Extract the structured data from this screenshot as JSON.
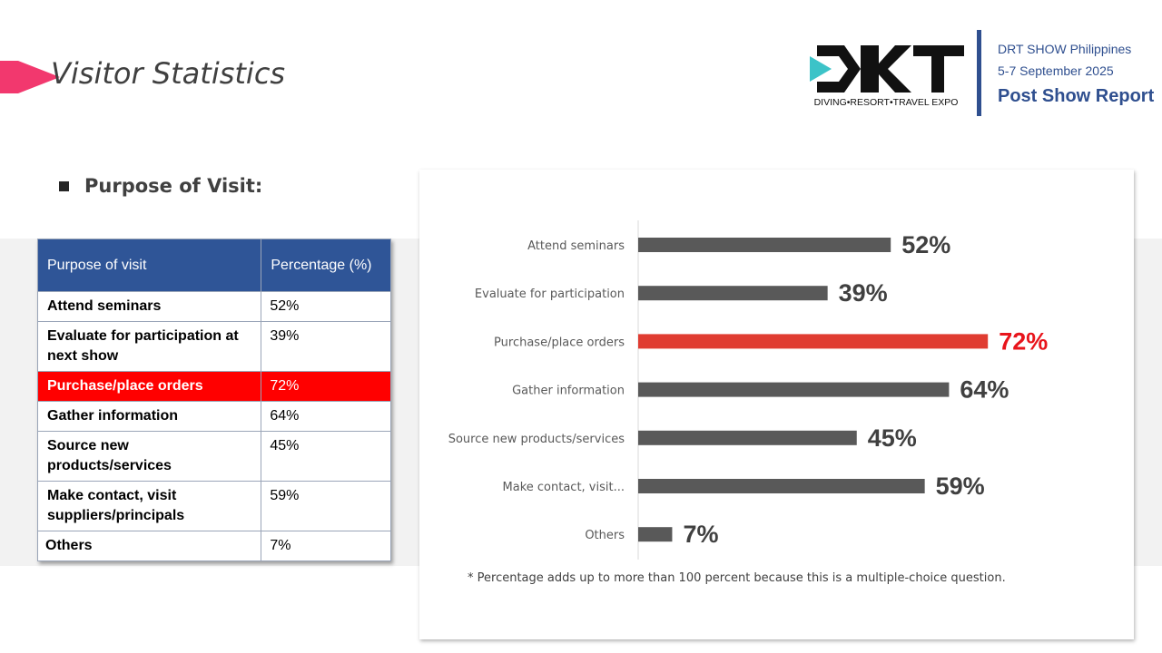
{
  "title": "Visitor Statistics",
  "header": {
    "event": "DRT SHOW Philippines",
    "dates": "5-7 September 2025",
    "report": "Post Show Report",
    "logo_text": "DIVING•RESORT•TRAVEL EXPO",
    "logo_letters": "DRT"
  },
  "section_title": "Purpose of Visit:",
  "table": {
    "col1": "Purpose of visit",
    "col2": "Percentage (%)",
    "rows": [
      {
        "label": "Attend seminars",
        "value": "52%"
      },
      {
        "label": "Evaluate for participation at next show",
        "value": "39%"
      },
      {
        "label": "Purchase/place orders",
        "value": "72%"
      },
      {
        "label": "Gather information",
        "value": "64%"
      },
      {
        "label": "Source new products/services",
        "value": "45%"
      },
      {
        "label": "Make contact, visit suppliers/principals",
        "value": "59%"
      },
      {
        "label": "Others",
        "value": "7%"
      }
    ]
  },
  "chart_data": {
    "type": "bar",
    "orientation": "horizontal",
    "categories": [
      "Attend seminars",
      "Evaluate for participation",
      "Purchase/place orders",
      "Gather information",
      "Source new products/services",
      "Make contact, visit...",
      "Others"
    ],
    "values": [
      52,
      39,
      72,
      64,
      45,
      59,
      7
    ],
    "value_labels": [
      "52%",
      "39%",
      "72%",
      "64%",
      "45%",
      "59%",
      "7%"
    ],
    "highlight_index": 2,
    "bar_color": "#595959",
    "highlight_color": "#e03c31",
    "xlim": [
      0,
      100
    ],
    "grid": false
  },
  "footnote": "* Percentage adds up to more than 100 percent because this is a multiple-choice question.",
  "colors": {
    "accent": "#f2386e",
    "brand": "#2f4f8f",
    "table_header": "#2f5597",
    "row_highlight": "#ff0000"
  }
}
